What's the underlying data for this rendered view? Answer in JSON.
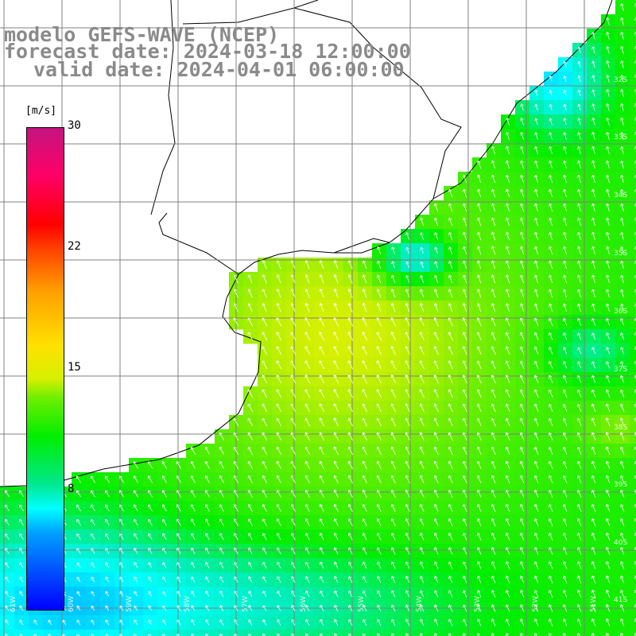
{
  "title": {
    "line1": "modelo GEFS-WAVE (NCEP)",
    "line2": "forecast date: 2024-03-18 12:00:00",
    "line3": "valid date: 2024-04-01 06:00:00"
  },
  "colorbar": {
    "units": "[m/s]",
    "ticks": [
      "30",
      "22",
      "15",
      "8"
    ],
    "range": [
      0,
      30
    ]
  },
  "axes": {
    "longitude_labels": [
      "61W",
      "60W",
      "59W",
      "58W",
      "57W",
      "56W",
      "55W",
      "54W",
      "53W",
      "52W",
      "51W"
    ],
    "latitude_labels": [
      "32S",
      "33S",
      "34S",
      "35S",
      "36S",
      "37S",
      "38S",
      "39S",
      "40S",
      "41S"
    ]
  },
  "colors": {
    "graticule": "#808080",
    "land": "#ffffff",
    "coastline": "#000000",
    "wind_arrows": "#ffffff",
    "title_text": "#8a8a8a"
  }
}
